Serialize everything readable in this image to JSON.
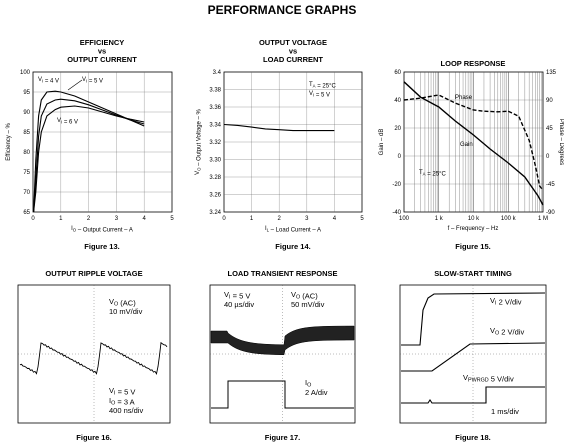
{
  "page_title": "PERFORMANCE GRAPHS",
  "chart_data": [
    {
      "id": "efficiency",
      "type": "line",
      "title": [
        "EFFICIENCY",
        "vs",
        "OUTPUT CURRENT"
      ],
      "xlabel": "I_O – Output Current – A",
      "ylabel": "Efficiency – %",
      "xlim": [
        0,
        5
      ],
      "ylim": [
        65,
        100
      ],
      "xticks": [
        "0",
        "1",
        "2",
        "3",
        "4",
        "5"
      ],
      "yticks": [
        "65",
        "70",
        "75",
        "80",
        "85",
        "90",
        "95",
        "100"
      ],
      "grid": true,
      "series": [
        {
          "name": "V_I = 4 V",
          "x": [
            0.1,
            0.2,
            0.3,
            0.5,
            0.8,
            1.0,
            1.5,
            2.0,
            2.5,
            3.0,
            3.5,
            4.0
          ],
          "y": [
            78,
            89,
            93,
            95,
            95.2,
            95,
            94,
            92.5,
            91,
            89.5,
            88,
            86.5
          ]
        },
        {
          "name": "V_I = 5 V",
          "x": [
            0.1,
            0.2,
            0.3,
            0.5,
            0.8,
            1.0,
            1.5,
            2.0,
            2.5,
            3.0,
            3.5,
            4.0
          ],
          "y": [
            73,
            84,
            89,
            92,
            93,
            93.2,
            92.8,
            91.8,
            90.5,
            89.2,
            88,
            87
          ]
        },
        {
          "name": "V_I = 6 V",
          "x": [
            0.1,
            0.2,
            0.3,
            0.5,
            0.8,
            1.0,
            1.5,
            2.0,
            2.5,
            3.0,
            3.5,
            4.0
          ],
          "y": [
            70,
            80,
            85,
            89,
            90.6,
            91.2,
            91.5,
            91,
            90,
            89,
            88.2,
            87.5
          ]
        }
      ],
      "labels": [
        "V_I = 4 V",
        "V_I = 5 V",
        "V_I = 6 V"
      ],
      "caption": "Figure 13."
    },
    {
      "id": "output_voltage",
      "type": "line",
      "title": [
        "OUTPUT VOLTAGE",
        "vs",
        "LOAD CURRENT"
      ],
      "xlabel": "I_L – Load Current – A",
      "ylabel": "V_O – Output Voltage – %",
      "xlim": [
        0,
        5
      ],
      "ylim": [
        3.24,
        3.4
      ],
      "xticks": [
        "0",
        "1",
        "2",
        "3",
        "4",
        "5"
      ],
      "yticks": [
        "3.24",
        "3.26",
        "3.28",
        "3.30",
        "3.32",
        "3.34",
        "3.36",
        "3.38",
        "3.4"
      ],
      "grid": true,
      "series": [
        {
          "name": "V_O",
          "x": [
            0,
            0.5,
            1,
            1.5,
            2,
            2.5,
            3,
            3.5,
            4
          ],
          "y": [
            3.34,
            3.339,
            3.337,
            3.335,
            3.334,
            3.333,
            3.333,
            3.333,
            3.333
          ]
        }
      ],
      "labels": [
        "T_A = 25°C",
        "V_I = 5 V"
      ],
      "caption": "Figure 14."
    },
    {
      "id": "loop_response",
      "type": "line",
      "title": [
        "LOOP RESPONSE"
      ],
      "xlabel": "f – Frequency – Hz",
      "ylabel": "Gain – dB",
      "ylabel_right": "Phase – Degrees",
      "xscale": "log",
      "xlim": [
        100,
        1000000
      ],
      "ylim": [
        -40,
        60
      ],
      "ylim_right": [
        -90,
        135
      ],
      "xticks": [
        "100",
        "1 k",
        "10 k",
        "100 k",
        "1 M"
      ],
      "yticks": [
        "-40",
        "-20",
        "0",
        "20",
        "40",
        "60"
      ],
      "yticks_right": [
        "-90",
        "-45",
        "0",
        "45",
        "90",
        "135"
      ],
      "grid": true,
      "series": [
        {
          "name": "Gain",
          "x": [
            100,
            300,
            1000,
            3000,
            10000,
            30000,
            100000,
            300000,
            700000,
            1000000
          ],
          "y": [
            53,
            42,
            35,
            25,
            15,
            5,
            -5,
            -15,
            -28,
            -35
          ]
        },
        {
          "name": "Phase",
          "axis": "right",
          "x": [
            100,
            300,
            1000,
            3000,
            10000,
            20000,
            50000,
            100000,
            200000,
            400000,
            600000,
            800000,
            1000000
          ],
          "y": [
            90,
            93,
            98,
            85,
            74,
            72,
            71,
            72,
            64,
            25,
            -15,
            -48,
            -55
          ]
        }
      ],
      "labels": [
        "Phase",
        "Gain",
        "T_A = 25°C"
      ],
      "caption": "Figure 15."
    },
    {
      "id": "ripple",
      "type": "line",
      "title": [
        "OUTPUT RIPPLE VOLTAGE"
      ],
      "labels": [
        "V_O (AC)",
        "10 mV/div",
        "V_I = 5 V",
        "I_O = 3 A",
        "400 ns/div"
      ],
      "caption": "Figure 16."
    },
    {
      "id": "transient",
      "type": "line",
      "title": [
        "LOAD TRANSIENT RESPONSE"
      ],
      "labels": [
        "V_I = 5 V",
        "40 µs/div",
        "V_O (AC)",
        "50 mV/div",
        "I_O",
        "2 A/div"
      ],
      "caption": "Figure 17."
    },
    {
      "id": "slowstart",
      "type": "line",
      "title": [
        "SLOW-START TIMING"
      ],
      "labels": [
        "V_I 2 V/div",
        "V_O 2 V/div",
        "V_PWRGD 5 V/div",
        "1 ms/div"
      ],
      "caption": "Figure 18."
    }
  ]
}
